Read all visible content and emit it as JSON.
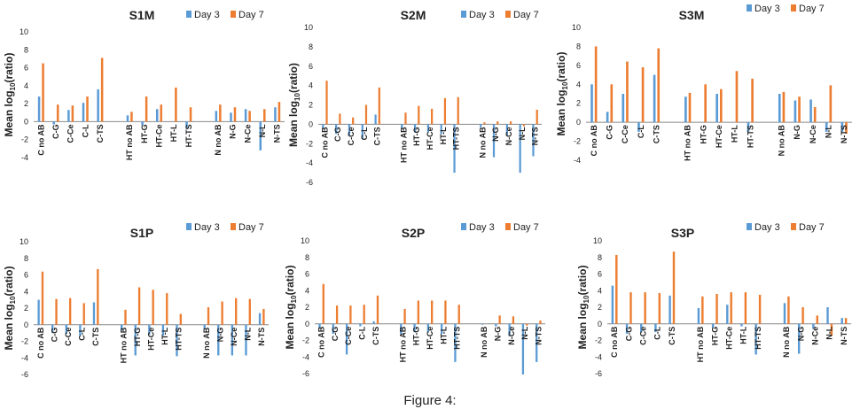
{
  "figure_caption": "Figure 4:",
  "legend_labels": [
    "Day 3",
    "Day 7"
  ],
  "colors": {
    "day3": "#5b9bd5",
    "day7": "#ed7d31",
    "axis": "#888888",
    "text": "#222222"
  },
  "ylabel_prefix": "Mean log",
  "ylabel_sub": "10",
  "ylabel_suffix": "(ratio)",
  "chart_data": [
    {
      "type": "bar",
      "title": "S1M",
      "ylim": [
        -4,
        10
      ],
      "ytick_labels": [
        "10",
        "8",
        "6",
        "4",
        "2",
        "0",
        "-2",
        "-4"
      ],
      "categories": [
        "C no AB",
        "C-G",
        "C-Ce",
        "C-L",
        "C-TS",
        "",
        "HT no AB",
        "HT-G",
        "HT-Ce",
        "HT-L",
        "HT-TS",
        "",
        "N no AB",
        "N-G",
        "N-Ce",
        "N-L",
        "N-TS"
      ],
      "series": [
        {
          "name": "Day 3",
          "values": [
            2.8,
            -0.3,
            1.3,
            2.1,
            3.6,
            null,
            0.7,
            -0.4,
            1.4,
            0.0,
            -0.8,
            null,
            1.2,
            1.0,
            1.4,
            -3.2,
            1.6
          ]
        },
        {
          "name": "Day 7",
          "values": [
            6.5,
            1.9,
            1.8,
            2.8,
            7.1,
            null,
            1.1,
            2.8,
            1.9,
            3.8,
            1.6,
            null,
            1.9,
            1.6,
            1.2,
            1.4,
            2.2
          ]
        }
      ]
    },
    {
      "type": "bar",
      "title": "S2M",
      "ylim": [
        -6,
        10
      ],
      "ytick_labels": [
        "10",
        "8",
        "6",
        "4",
        "2",
        "0",
        "-2",
        "-4",
        "-6"
      ],
      "categories": [
        "C no AB",
        "C-G",
        "C-Ce",
        "C-L",
        "C-TS",
        "",
        "HT no AB",
        "HT-G",
        "HT-Ce",
        "HT-L",
        "HT-TS",
        "",
        "N no AB",
        "N-G",
        "N-Ce",
        "N-L",
        "N-TS"
      ],
      "series": [
        {
          "name": "Day 3",
          "values": [
            -0.5,
            -1.0,
            -1.2,
            -1.5,
            1.0,
            null,
            -0.5,
            -0.8,
            -0.8,
            -1.0,
            -5.0,
            null,
            -0.3,
            -3.4,
            -1.2,
            -5.0,
            -3.3
          ]
        },
        {
          "name": "Day 7",
          "values": [
            4.5,
            1.1,
            0.7,
            2.0,
            3.8,
            null,
            1.2,
            1.9,
            1.6,
            2.7,
            2.8,
            null,
            0.2,
            0.3,
            0.3,
            -0.2,
            1.5
          ]
        }
      ]
    },
    {
      "type": "bar",
      "title": "S3M",
      "ylim": [
        -4,
        10
      ],
      "ytick_labels": [
        "10",
        "8",
        "6",
        "4",
        "2",
        "0",
        "-2",
        "-4"
      ],
      "categories": [
        "C no AB",
        "C-G",
        "C-Ce",
        "C-L",
        "C-TS",
        "",
        "HT no AB",
        "HT-G",
        "HT-Ce",
        "HT-L",
        "HT-TS",
        "",
        "N no AB",
        "N-G",
        "N-Ce",
        "N-L",
        "N-TS"
      ],
      "series": [
        {
          "name": "Day 3",
          "values": [
            4.0,
            1.1,
            3.0,
            -1.0,
            5.0,
            null,
            2.7,
            0.0,
            3.0,
            0.0,
            -1.0,
            null,
            3.0,
            2.3,
            2.4,
            -1.0,
            -1.0
          ]
        },
        {
          "name": "Day 7",
          "values": [
            8.0,
            4.0,
            6.4,
            5.8,
            7.8,
            null,
            3.1,
            4.0,
            3.5,
            5.4,
            4.6,
            null,
            3.2,
            2.7,
            1.6,
            3.9,
            -1.2
          ]
        }
      ]
    },
    {
      "type": "bar",
      "title": "S1P",
      "ylim": [
        -6,
        10
      ],
      "ytick_labels": [
        "10",
        "8",
        "6",
        "4",
        "2",
        "0",
        "-2",
        "-4",
        "-6"
      ],
      "categories": [
        "C no AB",
        "C-G",
        "C-Ce",
        "C-L",
        "C-TS",
        "",
        "HT no AB",
        "HT-G",
        "HT-Ce",
        "HT-L",
        "HT-TS",
        "",
        "N no AB",
        "N-G",
        "N-Ce",
        "N-L",
        "N-TS"
      ],
      "series": [
        {
          "name": "Day 3",
          "values": [
            3.0,
            -1.0,
            -1.1,
            -1.3,
            2.7,
            null,
            -0.7,
            -3.7,
            -1.2,
            -1.3,
            -3.8,
            null,
            -0.5,
            -3.7,
            -3.7,
            -3.7,
            1.4
          ]
        },
        {
          "name": "Day 7",
          "values": [
            6.4,
            3.1,
            3.2,
            2.6,
            6.7,
            null,
            1.8,
            4.5,
            4.2,
            3.8,
            1.3,
            null,
            2.1,
            2.8,
            3.2,
            3.1,
            1.9
          ]
        }
      ]
    },
    {
      "type": "bar",
      "title": "S2P",
      "ylim": [
        -6,
        10
      ],
      "ytick_labels": [
        "10",
        "8",
        "6",
        "4",
        "2",
        "0",
        "-2",
        "-4",
        "-6"
      ],
      "categories": [
        "C no AB",
        "C-G",
        "C-Ce",
        "C-L",
        "C-TS",
        "",
        "HT no AB",
        "HT-G",
        "HT-Ce",
        "HT-L",
        "HT-TS",
        "",
        "N no AB",
        "N-G",
        "N-Ce",
        "N-L",
        "N-TS"
      ],
      "series": [
        {
          "name": "Day 3",
          "values": [
            -0.6,
            -1.2,
            -3.7,
            -0.3,
            0.3,
            null,
            -1.2,
            -1.0,
            -1.0,
            -1.2,
            -4.6,
            null,
            -0.1,
            -0.3,
            -1.5,
            -6.1,
            -4.6
          ]
        },
        {
          "name": "Day 7",
          "values": [
            4.8,
            2.2,
            2.2,
            2.3,
            3.4,
            null,
            1.8,
            2.8,
            2.8,
            2.8,
            2.3,
            null,
            0.0,
            1.0,
            0.9,
            -0.2,
            0.4
          ]
        }
      ]
    },
    {
      "type": "bar",
      "title": "S3P",
      "ylim": [
        -6,
        10
      ],
      "ytick_labels": [
        "10",
        "8",
        "6",
        "4",
        "2",
        "0",
        "-2",
        "-4",
        "-6"
      ],
      "categories": [
        "C no AB",
        "C-G",
        "C-Ce",
        "C-L",
        "C-TS",
        "",
        "HT no AB",
        "HT-G",
        "HT-Ce",
        "HT-L",
        "HT-TS",
        "",
        "N no AB",
        "N-G",
        "N-Ce",
        "N-L",
        "N-TS"
      ],
      "series": [
        {
          "name": "Day 3",
          "values": [
            4.6,
            -1.2,
            -1.0,
            -1.0,
            3.4,
            null,
            1.9,
            -0.5,
            2.3,
            -0.3,
            -3.7,
            null,
            2.5,
            -3.6,
            -0.6,
            2.0,
            0.7
          ]
        },
        {
          "name": "Day 7",
          "values": [
            8.3,
            3.8,
            3.8,
            3.7,
            8.7,
            null,
            3.3,
            3.6,
            3.8,
            3.8,
            3.5,
            null,
            3.3,
            2.0,
            1.0,
            -1.4,
            0.7
          ]
        }
      ]
    }
  ]
}
